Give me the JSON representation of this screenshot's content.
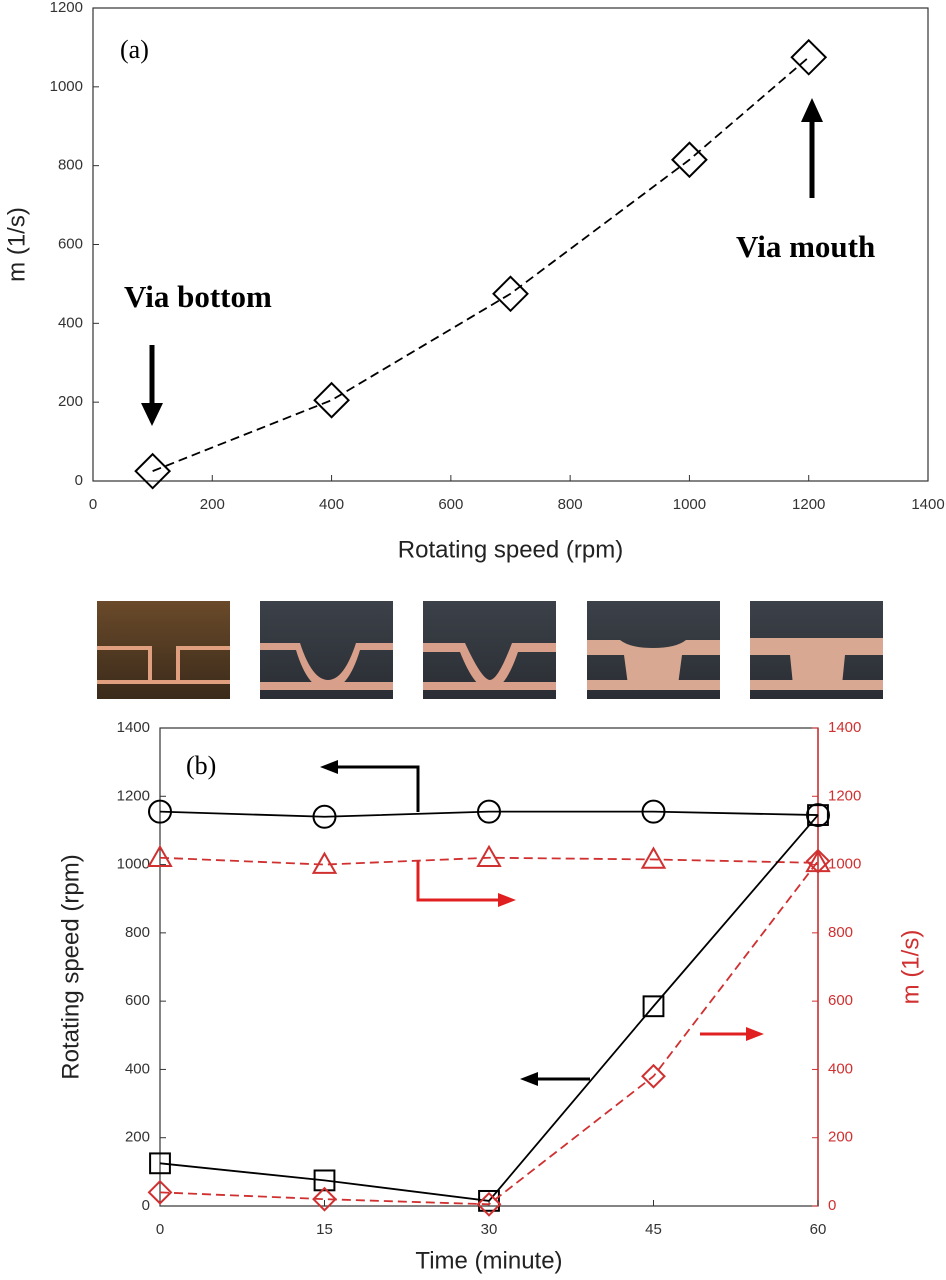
{
  "chart_data": [
    {
      "type": "line",
      "xlabel": "Rotating speed (rpm)",
      "ylabel": "m (1/s)",
      "annotations": [
        "(a)",
        "Via bottom",
        "Via mouth"
      ],
      "xlim": [
        0,
        1400
      ],
      "xticks": [
        0,
        200,
        400,
        600,
        800,
        1000,
        1200,
        1400
      ],
      "ylim": [
        0,
        1200
      ],
      "yticks": [
        0,
        200,
        400,
        600,
        800,
        1000,
        1200
      ],
      "series": [
        {
          "color": "#000000",
          "dashed": true,
          "marker": "diamond",
          "x": [
            100,
            400,
            700,
            1000,
            1200
          ],
          "values": [
            25,
            205,
            475,
            815,
            1075
          ]
        }
      ]
    },
    {
      "type": "line",
      "xlabel": "Time (minute)",
      "ylabel": "Rotating speed (rpm)",
      "y2label": "m (1/s)",
      "annotations": [
        "(b)"
      ],
      "y2color": "#d03030",
      "xlim": [
        0,
        60
      ],
      "xticks": [
        0,
        15,
        30,
        45,
        60
      ],
      "ylim": [
        0,
        1400
      ],
      "yticks": [
        0,
        200,
        400,
        600,
        800,
        1000,
        1200,
        1400
      ],
      "y2lim": [
        0,
        1400
      ],
      "y2ticks": [
        0,
        200,
        400,
        600,
        800,
        1000,
        1200,
        1400
      ],
      "series": [
        {
          "color": "#000000",
          "dashed": false,
          "marker": "circle",
          "x": [
            0,
            15,
            30,
            45,
            60
          ],
          "values": [
            1155,
            1140,
            1155,
            1155,
            1145
          ]
        },
        {
          "color": "#d03030",
          "dashed": true,
          "marker": "triangle",
          "axis": "y2",
          "x": [
            0,
            15,
            30,
            45,
            60
          ],
          "values": [
            1020,
            1000,
            1020,
            1015,
            1005
          ]
        },
        {
          "color": "#000000",
          "dashed": false,
          "marker": "square",
          "x": [
            0,
            15,
            30,
            45,
            60
          ],
          "values": [
            125,
            75,
            15,
            585,
            1145
          ]
        },
        {
          "color": "#d03030",
          "dashed": true,
          "marker": "diamond",
          "axis": "y2",
          "x": [
            0,
            15,
            30,
            45,
            60
          ],
          "values": [
            40,
            20,
            5,
            380,
            1010
          ]
        }
      ]
    }
  ]
}
